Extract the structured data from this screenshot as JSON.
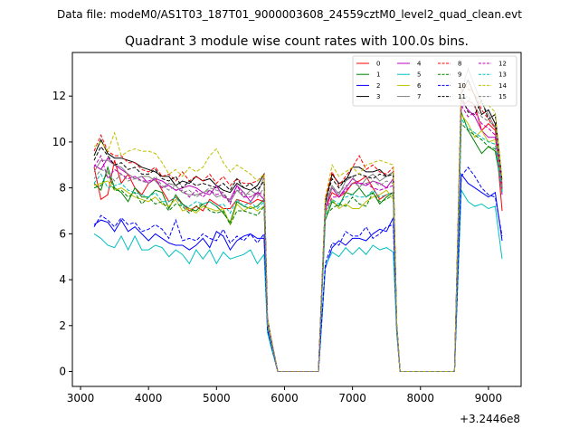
{
  "figure": {
    "suptitle": "Data file: modeM0/AS1T03_187T01_9000003608_24559cztM0_level2_quad_clean.evt"
  },
  "chart_data": {
    "type": "line",
    "title": "Quadrant 3 module wise count rates with 100.0s bins.",
    "xlabel": "",
    "ylabel": "",
    "x_offset_label": "+3.2446e8",
    "xlim": [
      2880,
      9480
    ],
    "ylim": [
      -0.65,
      13.9
    ],
    "xticks": [
      3000,
      4000,
      5000,
      6000,
      7000,
      8000,
      9000
    ],
    "yticks": [
      0,
      2,
      4,
      6,
      8,
      10,
      12
    ],
    "grid": false,
    "legend_position": "top-right",
    "legend_columns": 4,
    "x": [
      3200,
      3300,
      3400,
      3500,
      3600,
      3700,
      3800,
      3900,
      4000,
      4100,
      4200,
      4300,
      4400,
      4500,
      4600,
      4700,
      4800,
      4900,
      5000,
      5100,
      5200,
      5300,
      5400,
      5500,
      5600,
      5700,
      5750,
      5800,
      5900,
      6000,
      6100,
      6200,
      6300,
      6400,
      6500,
      6600,
      6700,
      6800,
      6900,
      7000,
      7100,
      7200,
      7300,
      7400,
      7500,
      7600,
      7650,
      7700,
      7800,
      7900,
      8000,
      8100,
      8200,
      8300,
      8400,
      8500,
      8600,
      8700,
      8800,
      8900,
      9000,
      9100,
      9200
    ],
    "series": [
      {
        "name": "0",
        "color": "#ff0000",
        "style": "solid",
        "values": [
          8.9,
          7.5,
          7.7,
          9.2,
          8.2,
          8.6,
          8.0,
          7.7,
          8.2,
          8.4,
          7.9,
          7.4,
          7.6,
          7.3,
          7.0,
          7.2,
          7.0,
          7.5,
          7.3,
          7.1,
          7.1,
          7.5,
          7.4,
          7.3,
          7.5,
          7.4,
          2.0,
          1.4,
          0.0,
          0.0,
          0.0,
          0.0,
          0.0,
          0.0,
          0.0,
          7.1,
          7.8,
          7.6,
          7.8,
          8.2,
          8.3,
          8.5,
          8.0,
          7.5,
          7.7,
          7.8,
          2.0,
          0.0,
          0.0,
          0.0,
          0.0,
          0.0,
          0.0,
          0.0,
          0.0,
          0.0,
          11.5,
          11.8,
          11.6,
          10.5,
          10.8,
          10.5,
          7.0
        ]
      },
      {
        "name": "1",
        "color": "#008000",
        "style": "solid",
        "values": [
          8.2,
          7.9,
          8.9,
          8.0,
          7.8,
          7.4,
          8.0,
          7.6,
          7.6,
          7.9,
          7.8,
          7.1,
          7.7,
          7.3,
          7.1,
          7.0,
          7.3,
          7.4,
          7.2,
          6.9,
          6.5,
          7.4,
          7.2,
          7.1,
          7.2,
          7.5,
          2.0,
          1.3,
          0.0,
          0.0,
          0.0,
          0.0,
          0.0,
          0.0,
          0.0,
          6.6,
          7.4,
          7.2,
          7.8,
          7.7,
          8.0,
          7.6,
          7.8,
          7.3,
          7.6,
          7.8,
          2.0,
          0.0,
          0.0,
          0.0,
          0.0,
          0.0,
          0.0,
          0.0,
          0.0,
          0.0,
          11.3,
          10.5,
          10.0,
          9.5,
          9.8,
          9.6,
          8.0
        ]
      },
      {
        "name": "2",
        "color": "#0000ff",
        "style": "solid",
        "values": [
          6.4,
          6.6,
          6.5,
          6.1,
          6.6,
          6.1,
          6.3,
          6.0,
          5.7,
          6.0,
          5.8,
          5.6,
          5.5,
          5.5,
          5.3,
          5.5,
          5.8,
          5.4,
          6.1,
          5.9,
          5.3,
          5.7,
          5.9,
          6.0,
          5.8,
          5.8,
          1.8,
          1.2,
          0.0,
          0.0,
          0.0,
          0.0,
          0.0,
          0.0,
          0.0,
          4.5,
          5.4,
          5.7,
          5.5,
          5.8,
          5.8,
          5.7,
          6.0,
          6.2,
          6.1,
          6.7,
          1.8,
          0.0,
          0.0,
          0.0,
          0.0,
          0.0,
          0.0,
          0.0,
          0.0,
          0.0,
          8.6,
          8.2,
          8.0,
          7.8,
          7.6,
          7.8,
          5.7
        ]
      },
      {
        "name": "3",
        "color": "#000000",
        "style": "solid",
        "values": [
          9.4,
          10.1,
          9.5,
          9.3,
          9.3,
          9.2,
          9.1,
          8.9,
          8.8,
          8.7,
          8.5,
          8.5,
          8.1,
          8.3,
          8.2,
          8.5,
          8.3,
          8.4,
          8.1,
          7.9,
          7.8,
          8.2,
          8.0,
          7.9,
          8.1,
          8.6,
          2.3,
          1.5,
          0.0,
          0.0,
          0.0,
          0.0,
          0.0,
          0.0,
          0.0,
          7.4,
          8.6,
          8.2,
          8.3,
          8.9,
          8.9,
          8.7,
          8.7,
          8.8,
          8.5,
          8.7,
          2.1,
          0.0,
          0.0,
          0.0,
          0.0,
          0.0,
          0.0,
          0.0,
          0.0,
          0.0,
          12.1,
          12.7,
          12.0,
          11.2,
          11.4,
          10.8,
          7.9
        ]
      },
      {
        "name": "4",
        "color": "#bf00bf",
        "style": "solid",
        "values": [
          9.0,
          8.8,
          9.3,
          9.0,
          8.8,
          8.6,
          8.4,
          8.5,
          8.2,
          8.4,
          8.3,
          8.1,
          7.9,
          8.0,
          8.1,
          8.0,
          7.8,
          7.7,
          8.1,
          7.6,
          7.5,
          8.1,
          7.8,
          7.4,
          7.8,
          7.5,
          2.1,
          1.4,
          0.0,
          0.0,
          0.0,
          0.0,
          0.0,
          0.0,
          0.0,
          7.1,
          8.0,
          7.6,
          8.0,
          8.4,
          8.2,
          8.1,
          8.3,
          8.2,
          8.0,
          8.4,
          2.0,
          0.0,
          0.0,
          0.0,
          0.0,
          0.0,
          0.0,
          0.0,
          0.0,
          0.0,
          11.8,
          11.4,
          11.1,
          10.5,
          10.2,
          10.2,
          7.7
        ]
      },
      {
        "name": "5",
        "color": "#00bfbf",
        "style": "solid",
        "values": [
          6.0,
          5.8,
          5.5,
          5.4,
          5.9,
          5.3,
          5.9,
          5.3,
          5.3,
          5.5,
          5.4,
          5.0,
          5.3,
          5.1,
          4.7,
          5.3,
          4.9,
          5.3,
          4.7,
          5.2,
          4.9,
          5.0,
          5.1,
          5.3,
          4.7,
          5.1,
          1.7,
          1.1,
          0.0,
          0.0,
          0.0,
          0.0,
          0.0,
          0.0,
          0.0,
          4.6,
          5.2,
          5.0,
          5.4,
          5.1,
          5.4,
          5.1,
          5.5,
          5.3,
          5.4,
          5.2,
          1.7,
          0.0,
          0.0,
          0.0,
          0.0,
          0.0,
          0.0,
          0.0,
          0.0,
          0.0,
          7.9,
          7.4,
          7.2,
          7.3,
          7.1,
          7.2,
          4.9
        ]
      },
      {
        "name": "6",
        "color": "#bfbf00",
        "style": "solid",
        "values": [
          8.1,
          8.2,
          8.3,
          7.9,
          8.0,
          7.8,
          7.6,
          7.5,
          7.4,
          7.6,
          7.3,
          7.2,
          7.5,
          7.0,
          7.1,
          6.9,
          7.2,
          7.1,
          7.0,
          7.1,
          6.4,
          7.3,
          7.0,
          7.2,
          7.0,
          7.2,
          2.0,
          1.3,
          0.0,
          0.0,
          0.0,
          0.0,
          0.0,
          0.0,
          0.0,
          6.9,
          7.5,
          7.1,
          7.3,
          7.1,
          7.1,
          7.4,
          7.6,
          7.7,
          7.9,
          7.5,
          2.0,
          0.0,
          0.0,
          0.0,
          0.0,
          0.0,
          0.0,
          0.0,
          0.0,
          0.0,
          11.2,
          10.8,
          10.2,
          10.5,
          10.0,
          10.1,
          7.9
        ]
      },
      {
        "name": "7",
        "color": "#808080",
        "style": "solid",
        "values": [
          8.7,
          9.2,
          9.2,
          9.0,
          8.9,
          8.6,
          8.4,
          8.5,
          8.5,
          8.3,
          8.0,
          8.2,
          8.1,
          7.8,
          7.7,
          7.7,
          7.8,
          7.9,
          7.6,
          7.7,
          7.4,
          7.9,
          7.6,
          7.9,
          7.7,
          8.5,
          2.1,
          1.4,
          0.0,
          0.0,
          0.0,
          0.0,
          0.0,
          0.0,
          0.0,
          7.3,
          8.1,
          7.7,
          8.3,
          8.5,
          8.0,
          8.4,
          8.6,
          8.3,
          8.5,
          8.7,
          2.1,
          0.0,
          0.0,
          0.0,
          0.0,
          0.0,
          0.0,
          0.0,
          0.0,
          0.0,
          12.2,
          13.2,
          12.4,
          11.7,
          11.2,
          10.6,
          8.2
        ]
      },
      {
        "name": "8",
        "color": "#ff0000",
        "style": "dashed",
        "values": [
          9.6,
          10.3,
          9.6,
          9.4,
          9.4,
          9.1,
          9.1,
          8.8,
          8.7,
          8.9,
          8.5,
          8.6,
          8.3,
          8.7,
          8.3,
          8.5,
          8.3,
          8.6,
          8.2,
          8.5,
          8.1,
          8.4,
          8.2,
          8.2,
          8.3,
          8.6,
          2.2,
          1.5,
          0.0,
          0.0,
          0.0,
          0.0,
          0.0,
          0.0,
          0.0,
          7.5,
          8.7,
          8.1,
          8.5,
          8.9,
          9.4,
          8.8,
          9.0,
          8.7,
          8.6,
          8.9,
          2.1,
          0.0,
          0.0,
          0.0,
          0.0,
          0.0,
          0.0,
          0.0,
          0.0,
          0.0,
          12.6,
          12.3,
          12.1,
          11.4,
          11.0,
          10.6,
          8.1
        ]
      },
      {
        "name": "9",
        "color": "#008000",
        "style": "dashed",
        "values": [
          8.0,
          8.1,
          8.7,
          7.9,
          7.9,
          7.6,
          7.8,
          7.3,
          7.6,
          7.3,
          7.4,
          7.0,
          7.3,
          7.2,
          6.9,
          7.2,
          7.3,
          7.0,
          6.9,
          7.0,
          6.4,
          7.0,
          7.0,
          6.9,
          6.8,
          7.2,
          1.9,
          1.3,
          0.0,
          0.0,
          0.0,
          0.0,
          0.0,
          0.0,
          0.0,
          6.8,
          7.1,
          7.3,
          7.2,
          7.6,
          7.3,
          7.2,
          7.8,
          7.4,
          7.5,
          7.7,
          2.0,
          0.0,
          0.0,
          0.0,
          0.0,
          0.0,
          0.0,
          0.0,
          0.0,
          0.0,
          10.8,
          10.5,
          10.3,
          10.1,
          9.8,
          9.7,
          7.8
        ]
      },
      {
        "name": "10",
        "color": "#0000ff",
        "style": "dashed",
        "values": [
          6.3,
          6.8,
          6.6,
          6.3,
          6.7,
          6.4,
          6.5,
          6.1,
          6.2,
          6.4,
          6.2,
          5.8,
          6.6,
          5.7,
          5.8,
          5.7,
          6.0,
          5.8,
          5.7,
          6.2,
          5.6,
          5.9,
          5.7,
          6.0,
          5.6,
          6.0,
          1.8,
          1.2,
          0.0,
          0.0,
          0.0,
          0.0,
          0.0,
          0.0,
          0.0,
          4.7,
          5.6,
          5.5,
          6.1,
          5.9,
          5.9,
          6.3,
          5.8,
          6.0,
          6.3,
          6.4,
          1.8,
          0.0,
          0.0,
          0.0,
          0.0,
          0.0,
          0.0,
          0.0,
          0.0,
          0.0,
          8.5,
          8.9,
          8.5,
          8.0,
          7.7,
          7.6,
          5.9
        ]
      },
      {
        "name": "11",
        "color": "#000000",
        "style": "dashed",
        "values": [
          9.2,
          9.8,
          9.4,
          9.0,
          9.1,
          8.8,
          8.9,
          8.6,
          8.6,
          8.8,
          8.4,
          8.3,
          8.5,
          8.0,
          8.3,
          8.1,
          8.2,
          8.1,
          8.0,
          8.2,
          7.9,
          8.4,
          8.0,
          8.2,
          7.9,
          8.3,
          2.2,
          1.4,
          0.0,
          0.0,
          0.0,
          0.0,
          0.0,
          0.0,
          0.0,
          7.4,
          8.4,
          8.0,
          8.4,
          8.5,
          8.6,
          8.5,
          8.4,
          8.6,
          8.5,
          8.6,
          2.1,
          0.0,
          0.0,
          0.0,
          0.0,
          0.0,
          0.0,
          0.0,
          0.0,
          0.0,
          12.0,
          11.3,
          11.2,
          11.8,
          11.0,
          11.2,
          8.3
        ]
      },
      {
        "name": "12",
        "color": "#bf00bf",
        "style": "dashed",
        "values": [
          8.9,
          9.4,
          8.4,
          8.8,
          8.6,
          8.4,
          8.5,
          8.3,
          8.3,
          8.4,
          8.0,
          8.1,
          7.9,
          7.9,
          7.6,
          7.9,
          7.6,
          7.9,
          7.7,
          7.8,
          7.3,
          8.1,
          7.6,
          7.6,
          7.8,
          7.7,
          2.1,
          1.4,
          0.0,
          0.0,
          0.0,
          0.0,
          0.0,
          0.0,
          0.0,
          7.0,
          7.6,
          7.6,
          7.9,
          8.2,
          8.2,
          8.2,
          8.0,
          7.9,
          8.0,
          8.1,
          2.0,
          0.0,
          0.0,
          0.0,
          0.0,
          0.0,
          0.0,
          0.0,
          0.0,
          0.0,
          11.6,
          11.1,
          11.3,
          10.8,
          10.6,
          10.3,
          7.9
        ]
      },
      {
        "name": "13",
        "color": "#00bfbf",
        "style": "dashed",
        "values": [
          8.2,
          8.6,
          8.0,
          8.1,
          8.2,
          7.9,
          7.8,
          7.7,
          7.6,
          7.8,
          7.4,
          7.4,
          7.6,
          7.2,
          7.2,
          7.4,
          7.3,
          7.4,
          7.2,
          7.3,
          6.9,
          7.5,
          7.2,
          7.4,
          7.1,
          7.4,
          2.0,
          1.3,
          0.0,
          0.0,
          0.0,
          0.0,
          0.0,
          0.0,
          0.0,
          6.8,
          7.5,
          7.3,
          7.6,
          7.7,
          7.6,
          7.6,
          7.9,
          7.6,
          7.7,
          7.8,
          2.0,
          0.0,
          0.0,
          0.0,
          0.0,
          0.0,
          0.0,
          0.0,
          0.0,
          0.0,
          11.0,
          10.6,
          10.4,
          10.2,
          10.0,
          9.9,
          7.8
        ]
      },
      {
        "name": "14",
        "color": "#bfbf00",
        "style": "dashed",
        "values": [
          9.8,
          10.0,
          9.6,
          10.4,
          9.4,
          9.6,
          9.7,
          9.6,
          9.6,
          9.5,
          9.1,
          8.6,
          8.8,
          8.5,
          8.9,
          8.7,
          8.9,
          9.4,
          9.7,
          9.1,
          8.7,
          9.0,
          8.8,
          8.6,
          8.3,
          8.6,
          2.3,
          1.5,
          0.0,
          0.0,
          0.0,
          0.0,
          0.0,
          0.0,
          0.0,
          7.6,
          9.0,
          8.5,
          8.7,
          8.9,
          8.6,
          9.0,
          9.1,
          9.2,
          9.1,
          9.0,
          2.2,
          0.0,
          0.0,
          0.0,
          0.0,
          0.0,
          0.0,
          0.0,
          0.0,
          0.0,
          12.6,
          12.4,
          12.1,
          11.6,
          11.6,
          11.3,
          8.4
        ]
      },
      {
        "name": "15",
        "color": "#808080",
        "style": "dashed",
        "values": [
          8.4,
          8.8,
          8.7,
          8.3,
          8.6,
          8.3,
          8.4,
          8.3,
          8.2,
          8.5,
          8.1,
          7.9,
          8.1,
          7.8,
          7.9,
          7.6,
          7.8,
          8.0,
          7.9,
          7.8,
          7.4,
          7.9,
          7.8,
          7.7,
          7.6,
          8.0,
          2.1,
          1.4,
          0.0,
          0.0,
          0.0,
          0.0,
          0.0,
          0.0,
          0.0,
          7.2,
          8.0,
          7.8,
          8.1,
          8.2,
          8.1,
          8.2,
          8.3,
          8.1,
          8.3,
          8.2,
          2.0,
          0.0,
          0.0,
          0.0,
          0.0,
          0.0,
          0.0,
          0.0,
          0.0,
          0.0,
          11.8,
          12.0,
          11.5,
          11.1,
          10.9,
          10.7,
          8.0
        ]
      }
    ]
  }
}
